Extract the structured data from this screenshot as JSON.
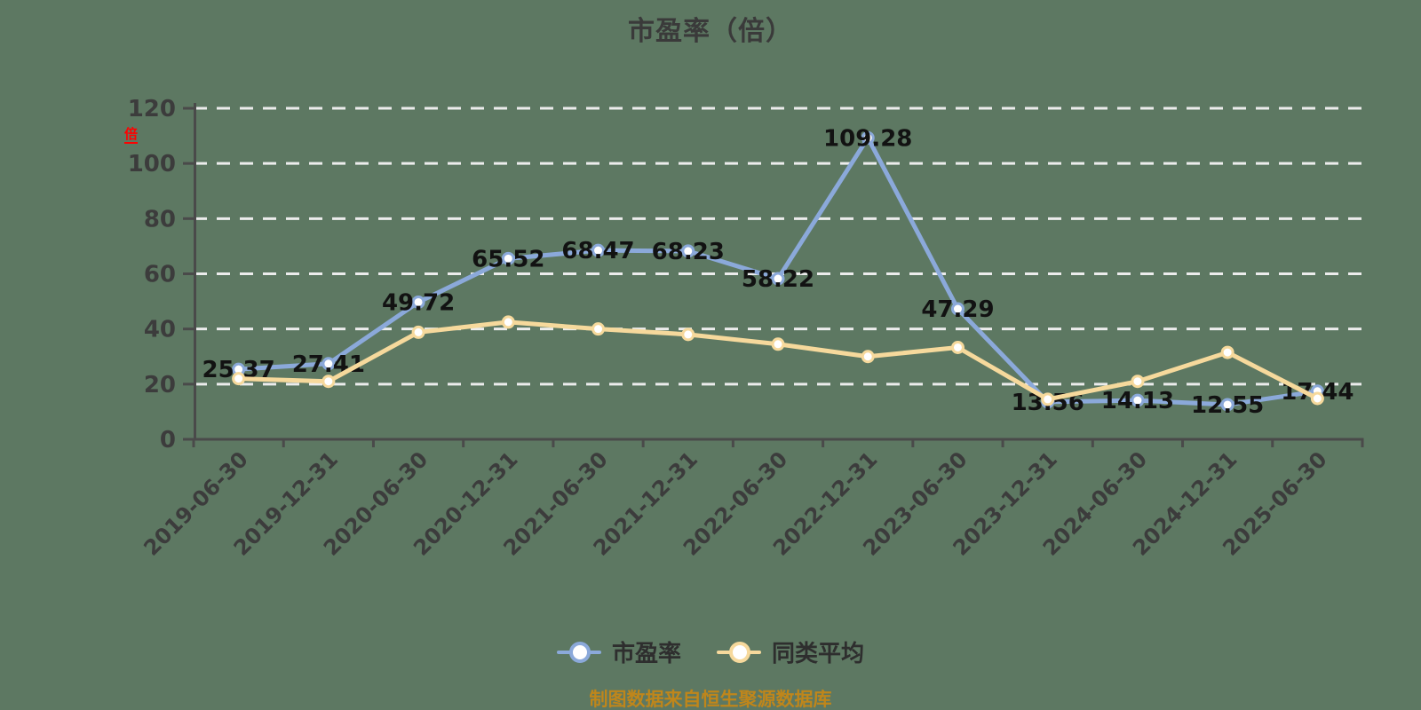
{
  "chart_data": {
    "type": "line",
    "title": "市盈率（倍）",
    "y_unit_label": "倍",
    "categories": [
      "2019-06-30",
      "2019-12-31",
      "2020-06-30",
      "2020-12-31",
      "2021-06-30",
      "2021-12-31",
      "2022-06-30",
      "2022-12-31",
      "2023-06-30",
      "2023-12-31",
      "2024-06-30",
      "2024-12-31",
      "2025-06-30"
    ],
    "series": [
      {
        "id": "pe",
        "name": "市盈率",
        "color": "#8BA9DA",
        "values": [
          25.37,
          27.41,
          49.72,
          65.52,
          68.47,
          68.23,
          58.22,
          109.28,
          47.29,
          13.56,
          14.13,
          12.55,
          17.44
        ],
        "point_labels": [
          "25.37",
          "27.41",
          "49.72",
          "65.52",
          "68.47",
          "68.23",
          "58.22",
          "109.28",
          "47.29",
          "13.56",
          "14.13",
          "12.55",
          "17.44"
        ]
      },
      {
        "id": "peer-avg",
        "name": "同类平均",
        "color": "#F6D99C",
        "values": [
          22,
          21,
          38.8,
          42.5,
          40,
          38,
          34.5,
          30,
          33.3,
          14.5,
          21,
          31.5,
          14.8
        ],
        "values_estimated": true,
        "point_labels": []
      }
    ],
    "ylim": [
      0,
      120
    ],
    "y_ticks": [
      0,
      20,
      40,
      60,
      80,
      100,
      120
    ],
    "x_label_rotation_deg": 45,
    "grid": "horizontal-dashed",
    "legend_position": "bottom"
  },
  "footer": {
    "caption": "制图数据来自恒生聚源数据库",
    "caption_color": "#BF861B"
  },
  "colors": {
    "background": "#5D7862",
    "axis": "#4A4A4A",
    "gridline": "#ECECEC",
    "tick_label": "#3C3C3C",
    "data_label": "#121212",
    "unit_label_red": "#FF0000",
    "marker_fill": "#FFFFFF"
  }
}
